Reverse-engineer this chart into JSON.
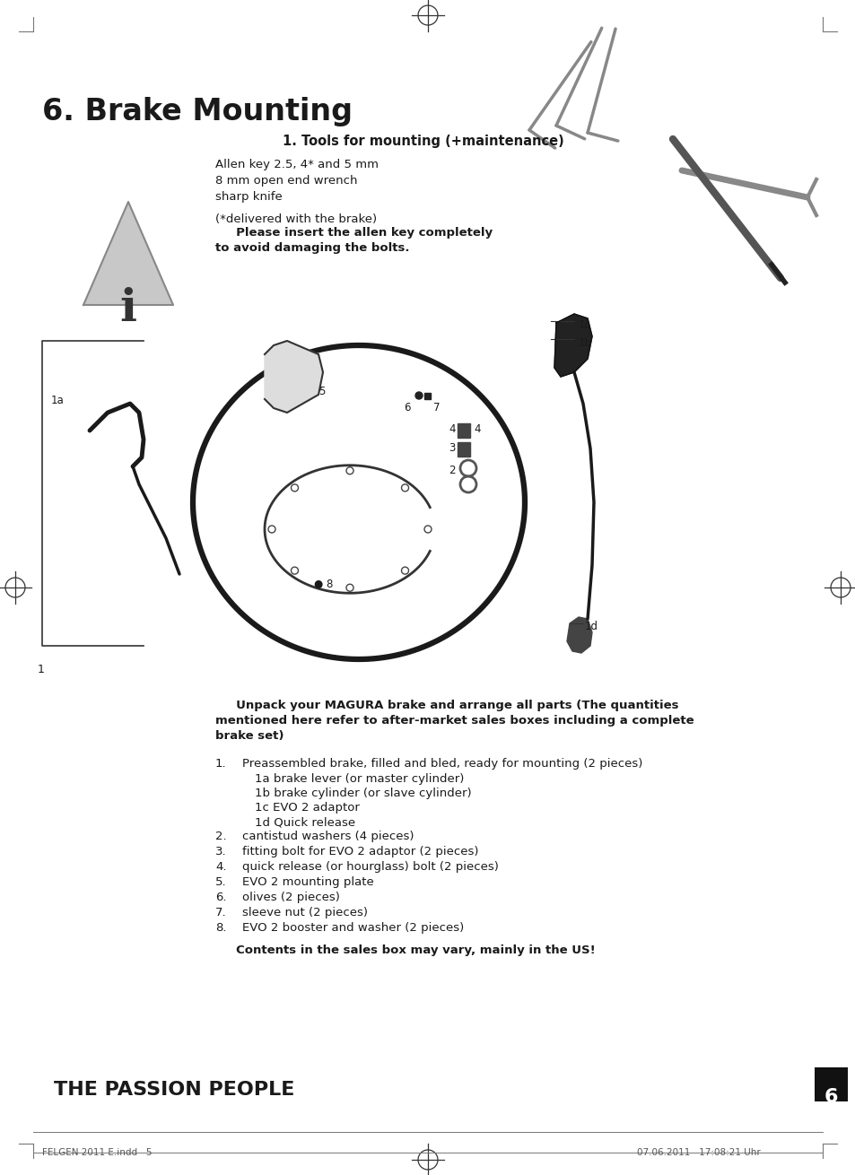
{
  "title": "6. Brake Mounting",
  "section1_title": "1. Tools for mounting (+maintenance)",
  "section1_line1": "Allen key 2.5, 4* and 5 mm",
  "section1_line2": "8 mm open end wrench",
  "section1_line3": "sharp knife",
  "section1_line4": "(*delivered with the brake)",
  "warning_text_line1": "     Please insert the allen key completely",
  "warning_text_line2": "to avoid damaging the bolts.",
  "unpack_line1": "     Unpack your MAGURA brake and arrange all parts (The quantities",
  "unpack_line2": "mentioned here refer to after-market sales boxes including a complete",
  "unpack_line3": "brake set)",
  "list_item1": "Preassembled brake, filled and bled, ready for mounting (2 pieces)",
  "list_sub1a": "1a brake lever (or master cylinder)",
  "list_sub1b": "1b brake cylinder (or slave cylinder)",
  "list_sub1c": "1c EVO 2 adaptor",
  "list_sub1d": "1d Quick release",
  "list_item2": "cantistud washers (4 pieces)",
  "list_item3": "fitting bolt for EVO 2 adaptor (2 pieces)",
  "list_item4": "quick release (or hourglass) bolt (2 pieces)",
  "list_item5": "EVO 2 mounting plate",
  "list_item6": "olives (2 pieces)",
  "list_item7": "sleeve nut (2 pieces)",
  "list_item8": "EVO 2 booster and washer (2 pieces)",
  "footer_bold": "     Contents in the sales box may vary, mainly in the US!",
  "passion_people": "THE PASSION PEOPLE",
  "page_number": "6",
  "footer_left": "FELGEN 2011 E.indd   5",
  "footer_right": "07.06.2011   17:08:21 Uhr",
  "bg_color": "#ffffff",
  "text_color": "#1a1a1a"
}
